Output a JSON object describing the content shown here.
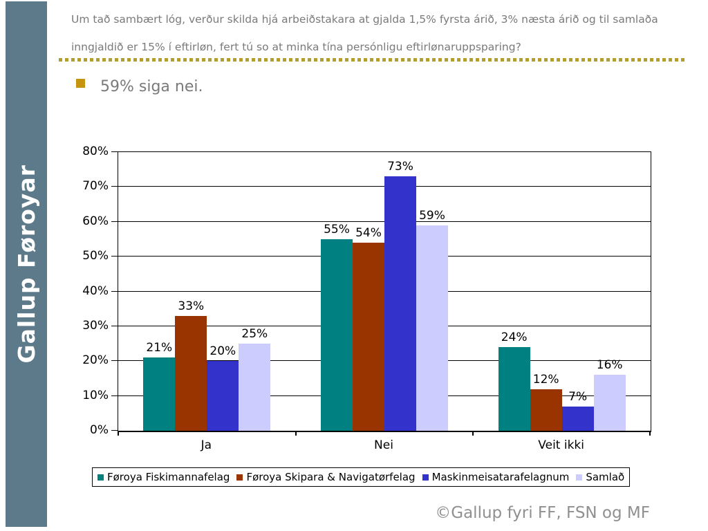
{
  "slide": {
    "sidebar_text": "Gallup Føroyar",
    "title": "Um tað sambært lóg, verður skilda hjá arbeiðstakara at gjalda 1,5% fyrsta árið, 3% næsta árið og til samlaða inngjaldið er 15% í eftirløn, fert tú so at minka tína persónligu eftirlønaruppsparing?",
    "bullet_text": "59% siga nei.",
    "footer": "©Gallup fyri FF, FSN og MF"
  },
  "colors": {
    "sidebar": "#5C7A8A",
    "title_text": "#7A7A7A",
    "divider_gold": "#B09E2F",
    "bullet_gold": "#C59410",
    "bullet_text": "#7A7A7A",
    "footer_text": "#909090",
    "axis_black": "#000000"
  },
  "chart_data": {
    "type": "bar",
    "title": "",
    "xlabel": "",
    "ylabel": "",
    "unit": "%",
    "categories": [
      "Ja",
      "Nei",
      "Veit ikki"
    ],
    "series": [
      {
        "name": "Føroya Fiskimannafelag",
        "color": "#008080",
        "values": [
          21,
          55,
          24
        ]
      },
      {
        "name": "Føroya Skipara & Navigatørfelag",
        "color": "#993300",
        "values": [
          33,
          54,
          12
        ]
      },
      {
        "name": "Maskinmeisatarafelagnum",
        "color": "#3333CC",
        "values": [
          20,
          73,
          7
        ]
      },
      {
        "name": "Samlað",
        "color": "#CCCCFF",
        "values": [
          25,
          59,
          16
        ]
      }
    ],
    "ylim": [
      0,
      80
    ],
    "ytick_step": 10,
    "y_tick_labels": [
      "0%",
      "10%",
      "20%",
      "30%",
      "40%",
      "50%",
      "60%",
      "70%",
      "80%"
    ],
    "gridlines": "horizontal",
    "legend_position": "bottom",
    "data_labels": true
  }
}
